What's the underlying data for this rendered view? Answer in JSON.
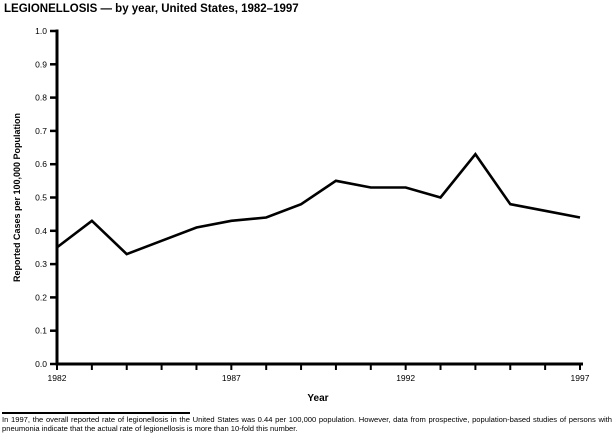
{
  "title": "LEGIONELLOSIS — by year, United States, 1982–1997",
  "chart_data": {
    "type": "line",
    "title": "LEGIONELLOSIS — by year, United States, 1982–1997",
    "x": [
      1982,
      1983,
      1984,
      1985,
      1986,
      1987,
      1988,
      1989,
      1990,
      1991,
      1992,
      1993,
      1994,
      1995,
      1996,
      1997
    ],
    "values": [
      0.35,
      0.43,
      0.33,
      0.37,
      0.41,
      0.43,
      0.44,
      0.48,
      0.55,
      0.53,
      0.53,
      0.5,
      0.63,
      0.48,
      0.46,
      0.44
    ],
    "xlabel": "Year",
    "ylabel": "Reported Cases per 100,000 Population",
    "ylim": [
      0.0,
      1.0
    ],
    "ytick_step": 0.1,
    "xtick_labeled": [
      1982,
      1987,
      1992,
      1997
    ],
    "line_color": "#000000",
    "axis_color": "#000000",
    "grid": false,
    "legend": null
  },
  "footnote": {
    "text": "In 1997, the overall reported rate of legionellosis in the United States was 0.44 per 100,000 population. However, data from prospective, population-based studies of persons with pneumonia indicate that the actual rate of legionellosis is more than 10-fold this number."
  }
}
